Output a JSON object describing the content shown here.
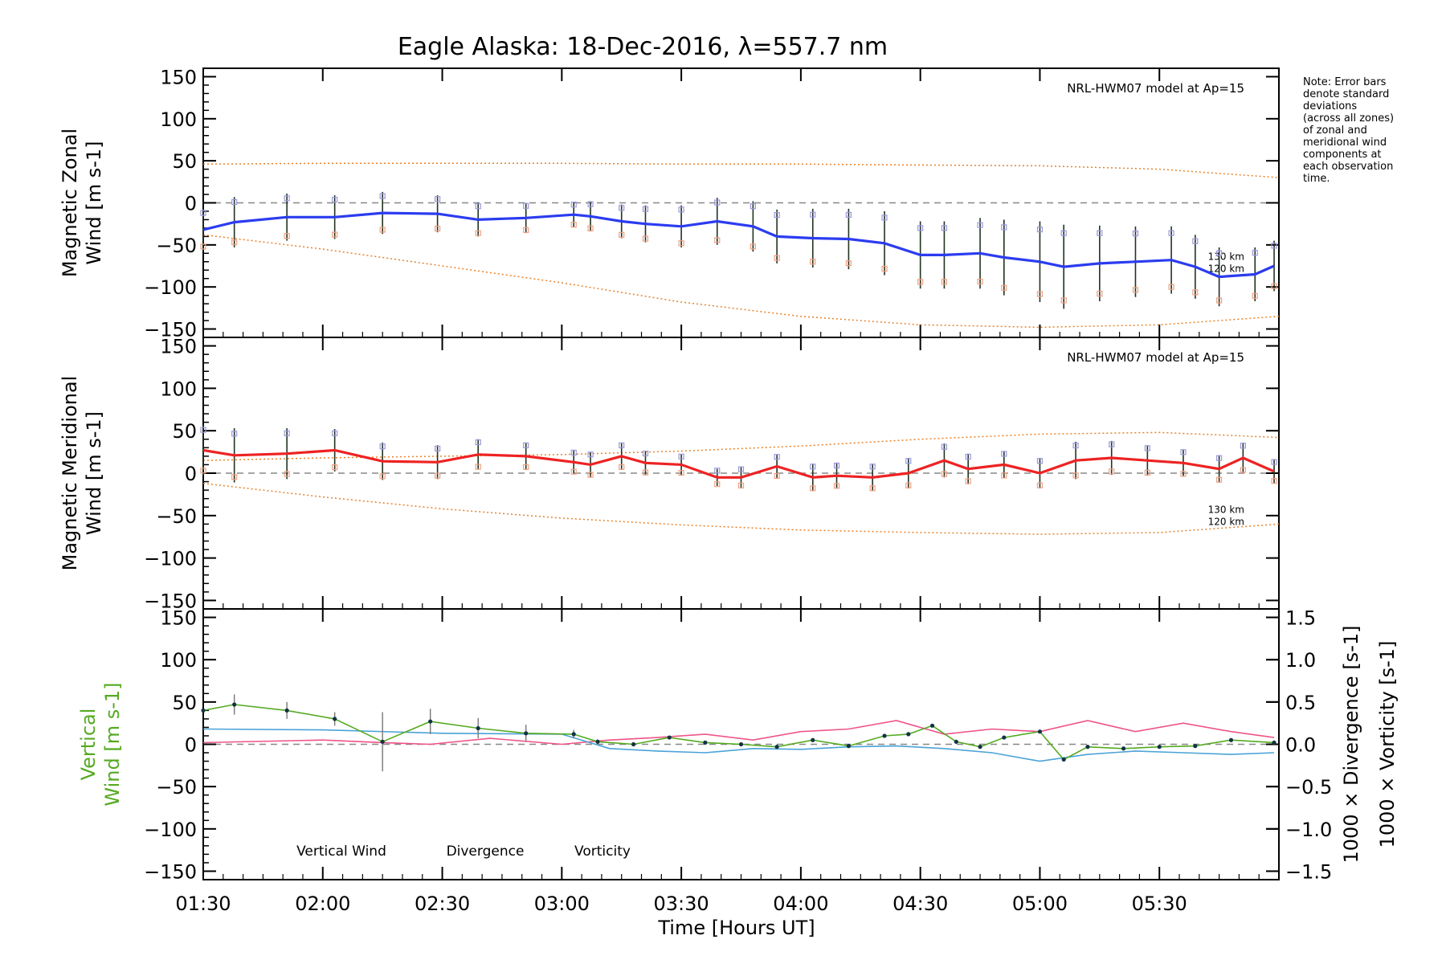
{
  "title": "Eagle Alaska: 18-Dec-2016, λ=557.7 nm",
  "note_lines": [
    "Note: Error bars",
    "denote standard",
    "deviations",
    "(across all zones)",
    "of zonal and",
    "meridional wind",
    "components at",
    "each observation",
    "time."
  ],
  "colors": {
    "zonal": "#2b3cf0",
    "meridional": "#ee2222",
    "model": "#e8822a",
    "vertical": "#55aa22",
    "divergence": "#4aa3d8",
    "vorticity": "#ee5588",
    "zero_line": "#888888",
    "zone_marker": "#9999dd",
    "err_marker": "#f0a080"
  },
  "chart_data": [
    {
      "id": "zonal",
      "type": "line",
      "ylabel_lines": [
        "Magnetic Zonal",
        "Wind [m s-1]"
      ],
      "ylim": [
        -160,
        160
      ],
      "yticks": [
        150,
        100,
        50,
        0,
        -50,
        -100,
        -150
      ],
      "model_label": "NRL-HWM07 model at Ap=15",
      "model_km_labels": [
        "130 km",
        "120 km"
      ],
      "series": [
        {
          "role": "wind",
          "x": [
            1.5,
            1.63,
            1.85,
            2.05,
            2.25,
            2.48,
            2.65,
            2.85,
            3.05,
            3.12,
            3.25,
            3.35,
            3.5,
            3.65,
            3.8,
            3.9,
            4.05,
            4.2,
            4.35,
            4.5,
            4.6,
            4.75,
            4.85,
            5.0,
            5.1,
            5.25,
            5.4,
            5.55,
            5.65,
            5.75,
            5.9,
            5.98
          ],
          "y": [
            -32,
            -23,
            -17,
            -17,
            -12,
            -13,
            -20,
            -18,
            -14,
            -16,
            -22,
            -25,
            -28,
            -22,
            -28,
            -40,
            -42,
            -43,
            -48,
            -62,
            -62,
            -60,
            -65,
            -70,
            -76,
            -72,
            -70,
            -68,
            -76,
            -88,
            -85,
            -75
          ],
          "err": [
            25,
            30,
            28,
            26,
            25,
            22,
            20,
            18,
            15,
            18,
            20,
            22,
            25,
            28,
            30,
            32,
            35,
            36,
            38,
            40,
            40,
            42,
            45,
            48,
            50,
            45,
            42,
            40,
            38,
            35,
            32,
            30
          ]
        }
      ],
      "model_lines": [
        {
          "x": [
            1.5,
            2.0,
            2.5,
            3.0,
            3.5,
            4.0,
            4.5,
            5.0,
            5.5,
            6.0
          ],
          "y": [
            46,
            47,
            47,
            47,
            46,
            46,
            45,
            44,
            40,
            30
          ]
        },
        {
          "x": [
            1.5,
            2.0,
            2.5,
            3.0,
            3.5,
            4.0,
            4.5,
            5.0,
            5.5,
            6.0
          ],
          "y": [
            -38,
            -55,
            -75,
            -95,
            -118,
            -135,
            -145,
            -148,
            -145,
            -135
          ]
        }
      ]
    },
    {
      "id": "meridional",
      "type": "line",
      "ylabel_lines": [
        "Magnetic Meridional",
        "Wind [m s-1]"
      ],
      "ylim": [
        -160,
        160
      ],
      "yticks": [
        150,
        100,
        50,
        0,
        -50,
        -100,
        -150
      ],
      "model_label": "NRL-HWM07 model at Ap=15",
      "model_km_labels": [
        "130 km",
        "120 km"
      ],
      "series": [
        {
          "role": "wind",
          "x": [
            1.5,
            1.63,
            1.85,
            2.05,
            2.25,
            2.48,
            2.65,
            2.85,
            3.05,
            3.12,
            3.25,
            3.35,
            3.5,
            3.65,
            3.75,
            3.9,
            4.05,
            4.15,
            4.3,
            4.45,
            4.6,
            4.7,
            4.85,
            5.0,
            5.15,
            5.3,
            5.45,
            5.6,
            5.75,
            5.85,
            5.98
          ],
          "y": [
            27,
            21,
            23,
            27,
            14,
            13,
            22,
            20,
            13,
            10,
            20,
            12,
            10,
            -5,
            -5,
            8,
            -5,
            -3,
            -5,
            0,
            15,
            5,
            10,
            0,
            15,
            18,
            15,
            12,
            5,
            18,
            2
          ],
          "err": [
            30,
            32,
            30,
            25,
            22,
            20,
            18,
            16,
            14,
            15,
            16,
            14,
            12,
            10,
            12,
            14,
            16,
            15,
            16,
            18,
            20,
            18,
            16,
            18,
            22,
            20,
            18,
            16,
            16,
            18,
            14
          ]
        }
      ],
      "model_lines": [
        {
          "x": [
            1.5,
            2.0,
            2.5,
            3.0,
            3.5,
            4.0,
            4.5,
            5.0,
            5.5,
            6.0
          ],
          "y": [
            15,
            18,
            20,
            22,
            26,
            32,
            40,
            46,
            48,
            42
          ]
        },
        {
          "x": [
            1.5,
            2.0,
            2.5,
            3.0,
            3.5,
            4.0,
            4.5,
            5.0,
            5.5,
            6.0
          ],
          "y": [
            -12,
            -28,
            -42,
            -53,
            -61,
            -67,
            -70,
            -72,
            -70,
            -60
          ]
        }
      ]
    },
    {
      "id": "vertical",
      "type": "line",
      "ylabel_lines": [
        "Vertical",
        "Wind [m s-1]"
      ],
      "ylim": [
        -160,
        160
      ],
      "yticks": [
        150,
        100,
        50,
        0,
        -50,
        -100,
        -150
      ],
      "y2label_lines": [
        "1000 × Divergence [s-1]",
        "1000 × Vorticity [s-1]"
      ],
      "y2lim": [
        -1.6,
        1.6
      ],
      "y2ticks": [
        "1.5",
        "1.0",
        "0.5",
        "0.0",
        "-0.5",
        "-1.0",
        "-1.5"
      ],
      "legend": [
        "Vertical Wind",
        "Divergence",
        "Vorticity"
      ],
      "series": [
        {
          "name": "Vertical Wind",
          "x": [
            1.5,
            1.63,
            1.85,
            2.05,
            2.25,
            2.45,
            2.65,
            2.85,
            3.05,
            3.15,
            3.3,
            3.45,
            3.6,
            3.75,
            3.9,
            4.05,
            4.2,
            4.35,
            4.45,
            4.55,
            4.65,
            4.75,
            4.85,
            5.0,
            5.1,
            5.2,
            5.35,
            5.5,
            5.65,
            5.8,
            5.98
          ],
          "y": [
            40,
            47,
            40,
            30,
            3,
            27,
            19,
            13,
            12,
            3,
            0,
            8,
            2,
            0,
            -3,
            5,
            -2,
            10,
            12,
            22,
            3,
            -3,
            8,
            15,
            -18,
            -3,
            -5,
            -3,
            -2,
            5,
            2
          ],
          "err": [
            0,
            12,
            10,
            8,
            35,
            15,
            12,
            10,
            5,
            3,
            0,
            0,
            0,
            0,
            0,
            0,
            0,
            0,
            0,
            0,
            0,
            0,
            0,
            0,
            0,
            0,
            0,
            0,
            0,
            0,
            0
          ]
        },
        {
          "name": "Divergence",
          "x": [
            1.5,
            2.0,
            2.5,
            3.0,
            3.2,
            3.4,
            3.6,
            3.8,
            4.0,
            4.2,
            4.4,
            4.6,
            4.8,
            5.0,
            5.2,
            5.4,
            5.6,
            5.8,
            5.98
          ],
          "y": [
            0.18,
            0.17,
            0.13,
            0.12,
            -0.05,
            -0.08,
            -0.1,
            -0.05,
            -0.06,
            -0.03,
            -0.02,
            -0.05,
            -0.1,
            -0.2,
            -0.12,
            -0.08,
            -0.1,
            -0.12,
            -0.1
          ]
        },
        {
          "name": "Vorticity",
          "x": [
            1.5,
            2.0,
            2.25,
            2.45,
            2.7,
            3.0,
            3.2,
            3.4,
            3.6,
            3.8,
            4.0,
            4.2,
            4.4,
            4.6,
            4.8,
            5.0,
            5.2,
            5.4,
            5.6,
            5.8,
            5.98
          ],
          "y": [
            0.02,
            0.05,
            0.02,
            0.0,
            0.07,
            0.0,
            0.05,
            0.08,
            0.12,
            0.05,
            0.15,
            0.18,
            0.28,
            0.12,
            0.18,
            0.15,
            0.28,
            0.15,
            0.25,
            0.15,
            0.08
          ]
        }
      ]
    }
  ],
  "xaxis": {
    "xlim": [
      1.5,
      6.0
    ],
    "xticks": [
      1.5,
      2.0,
      2.5,
      3.0,
      3.5,
      4.0,
      4.5,
      5.0,
      5.5
    ],
    "xtick_labels": [
      "01:30",
      "02:00",
      "02:30",
      "03:00",
      "03:30",
      "04:00",
      "04:30",
      "05:00",
      "05:30"
    ],
    "xlabel": "Time [Hours UT]"
  }
}
